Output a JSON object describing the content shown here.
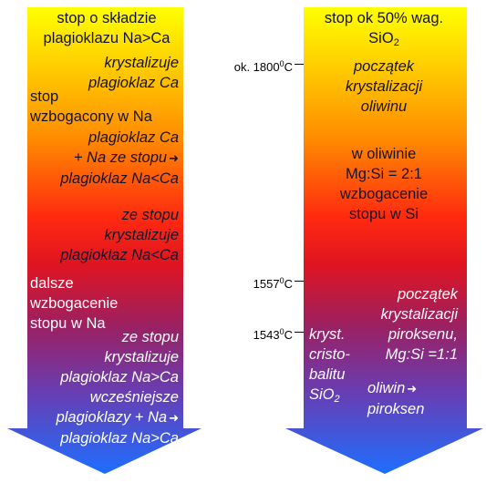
{
  "left": {
    "title_line1": "stop o składzie",
    "title_line2": "plagioklazu Na>Ca",
    "s1": [
      "krystalizuje",
      "plagioklaz Ca"
    ],
    "s2": [
      "stop",
      "wzbogacony w Na"
    ],
    "s3": [
      "plagioklaz Ca",
      "+ Na ze stopu",
      "plagioklaz Na<Ca"
    ],
    "s4": [
      "ze stopu",
      "krystalizuje",
      "plagioklaz Na<Ca"
    ],
    "s5": [
      "dalsze",
      "wzbogacenie",
      "stopu w Na"
    ],
    "s6": [
      "ze stopu",
      "krystalizuje",
      "plagioklaz Na>Ca",
      "wcześniejsze",
      "plagioklazy + Na",
      "plagioklaz Na>Ca"
    ]
  },
  "right": {
    "title_line1": "stop ok 50% wag.",
    "title_sio": "SiO",
    "title_sub": "2",
    "s1": [
      "początek",
      "krystalizacji",
      "oliwinu"
    ],
    "s2": [
      "w oliwinie",
      "Mg:Si = 2:1",
      "wzbogacenie",
      "stopu w Si"
    ],
    "s3": [
      "początek",
      "krystalizacji",
      "piroksenu,",
      "Mg:Si =1:1"
    ],
    "s4": [
      "kryst.",
      "cristo-",
      "balitu",
      "SiO",
      "2"
    ],
    "s5": [
      "oliwin",
      "piroksen"
    ]
  },
  "temps": [
    {
      "prefix": "ok. 1800",
      "sup": "0",
      "unit": "C"
    },
    {
      "prefix": "1557",
      "sup": "0",
      "unit": "C"
    },
    {
      "prefix": "1543",
      "sup": "0",
      "unit": "C"
    }
  ],
  "colors": {
    "top": "#ffff00",
    "orange": "#ff8c00",
    "red": "#ee1616",
    "purple": "#8e2c6e",
    "bottom": "#1e6eff"
  }
}
